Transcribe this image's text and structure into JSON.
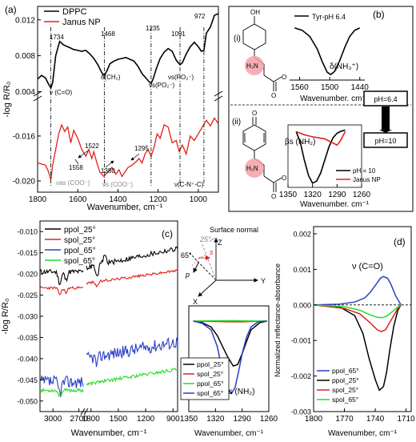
{
  "chart_data": [
    {
      "panel": "(a)",
      "type": "line",
      "xlabel": "Wavenumber, cm⁻¹",
      "ylabel": "-log R/R₀",
      "xlim": [
        1800,
        900
      ],
      "x_ticks": [
        "1800",
        "1600",
        "1400",
        "1200",
        "1000"
      ],
      "y_ticks_upper": [
        "0.012",
        "0.008",
        "0.004"
      ],
      "y_ticks_lower": [
        "-0.016",
        "-0.020"
      ],
      "legend": [
        "DPPC",
        "Janus NP"
      ],
      "peak_labels": [
        "1734",
        "1468",
        "1235",
        "1091",
        "972",
        "1522",
        "1558",
        "1380",
        "1295"
      ],
      "mode_labels": [
        "ν (C=O)",
        "δ(CH₂)",
        "νs(PO₂⁻)",
        "νs(PO₂⁻)",
        "νas (COO⁻)",
        "νs (COO⁻)",
        "ν(C-N⁺-C)"
      ],
      "series": [
        {
          "name": "DPPC",
          "color": "#000000",
          "x": [
            1800,
            1780,
            1760,
            1745,
            1734,
            1725,
            1710,
            1690,
            1670,
            1650,
            1620,
            1600,
            1580,
            1560,
            1540,
            1520,
            1500,
            1480,
            1468,
            1455,
            1440,
            1420,
            1400,
            1380,
            1360,
            1340,
            1320,
            1300,
            1280,
            1260,
            1245,
            1235,
            1225,
            1210,
            1190,
            1170,
            1150,
            1130,
            1110,
            1091,
            1080,
            1060,
            1040,
            1020,
            1000,
            985,
            972,
            960,
            940,
            920,
            900
          ],
          "y": [
            0.0054,
            0.0058,
            0.0055,
            0.0048,
            0.0044,
            0.005,
            0.008,
            0.0096,
            0.0092,
            0.009,
            0.0087,
            0.0086,
            0.0085,
            0.0086,
            0.0082,
            0.0077,
            0.007,
            0.0061,
            0.0058,
            0.0063,
            0.0071,
            0.0074,
            0.0076,
            0.0077,
            0.0078,
            0.0076,
            0.0074,
            0.0068,
            0.006,
            0.0055,
            0.0051,
            0.0049,
            0.0054,
            0.0065,
            0.0077,
            0.0084,
            0.0088,
            0.0085,
            0.0075,
            0.007,
            0.0072,
            0.0082,
            0.009,
            0.0095,
            0.009,
            0.0085,
            0.0086,
            0.0105,
            0.0112,
            0.0125,
            0.0127
          ]
        },
        {
          "name": "Janus NP",
          "color": "#e0201b",
          "x": [
            1800,
            1780,
            1760,
            1745,
            1734,
            1725,
            1710,
            1695,
            1680,
            1665,
            1650,
            1635,
            1620,
            1600,
            1580,
            1560,
            1545,
            1530,
            1520,
            1505,
            1490,
            1470,
            1450,
            1430,
            1410,
            1395,
            1380,
            1365,
            1350,
            1330,
            1310,
            1295,
            1280,
            1265,
            1250,
            1235,
            1220,
            1205,
            1190,
            1170,
            1150,
            1130,
            1110,
            1095,
            1080,
            1060,
            1040,
            1020,
            1000,
            980,
            960,
            940,
            920,
            900
          ],
          "y": [
            -0.0184,
            -0.0185,
            -0.0186,
            -0.0192,
            -0.0199,
            -0.0186,
            -0.0172,
            -0.0158,
            -0.015,
            -0.0156,
            -0.0152,
            -0.0166,
            -0.0155,
            -0.0162,
            -0.0172,
            -0.0178,
            -0.0172,
            -0.018,
            -0.0174,
            -0.0184,
            -0.0192,
            -0.0196,
            -0.0192,
            -0.0188,
            -0.0194,
            -0.019,
            -0.0196,
            -0.0192,
            -0.0188,
            -0.0186,
            -0.0183,
            -0.018,
            -0.0184,
            -0.0176,
            -0.0172,
            -0.0178,
            -0.017,
            -0.0158,
            -0.0162,
            -0.015,
            -0.0152,
            -0.0166,
            -0.0164,
            -0.0174,
            -0.0168,
            -0.0176,
            -0.016,
            -0.0164,
            -0.0158,
            -0.0152,
            -0.0146,
            -0.0151,
            -0.0144,
            -0.0149
          ]
        }
      ]
    },
    {
      "panel": "(b)",
      "type": "line",
      "sub_i": {
        "label": "(i)",
        "legend": "Tyr-pH 6.4",
        "annotation": "δ(NH₃⁺)",
        "xlabel": "Wavenumber. cm⁻¹",
        "xlim": [
          1580,
          1430
        ],
        "x_ticks": [
          "1560",
          "1500",
          "1440"
        ],
        "series": [
          {
            "name": "Tyr-pH 6.4",
            "color": "#000000",
            "x": [
              1570,
              1555,
              1540,
              1525,
              1515,
              1505,
              1498,
              1490,
              1480,
              1470,
              1460,
              1450,
              1440
            ],
            "y": [
              0.0,
              -0.05,
              -0.18,
              -0.45,
              -0.72,
              -0.95,
              -1.0,
              -0.93,
              -0.7,
              -0.42,
              -0.18,
              -0.05,
              0.0
            ]
          }
        ]
      },
      "sub_ii": {
        "label": "(ii)",
        "annotation": "βs (NH₂)",
        "xlabel": "Wavenumber. cm⁻¹",
        "xlim": [
          1350,
          1260
        ],
        "x_ticks": [
          "1350",
          "1320",
          "1290",
          "1260"
        ],
        "legend": [
          "pH = 10",
          "Janus NP"
        ],
        "series": [
          {
            "name": "pH = 10",
            "color": "#000000",
            "x": [
              1340,
              1335,
              1330,
              1325,
              1320,
              1315,
              1310,
              1305,
              1300,
              1295,
              1290,
              1285,
              1280
            ],
            "y": [
              0.0,
              -0.2,
              -0.55,
              -0.85,
              -1.0,
              -0.96,
              -0.8,
              -0.55,
              -0.3,
              -0.12,
              -0.03,
              0.01,
              0.03
            ]
          },
          {
            "name": "Janus NP",
            "color": "#e0201b",
            "x": [
              1340,
              1330,
              1320,
              1312,
              1305,
              1300,
              1295,
              1290,
              1286,
              1282,
              1280
            ],
            "y": [
              0.0,
              -0.06,
              -0.1,
              -0.12,
              -0.14,
              -0.18,
              -0.22,
              -0.26,
              -0.18,
              -0.06,
              0.0
            ]
          }
        ]
      },
      "ph_labels": [
        "pH=6.4",
        "pH=10"
      ]
    },
    {
      "panel": "(c)",
      "type": "line",
      "xlabel": "Wavenumber, cm⁻¹",
      "ylabel": "-log R/R₀",
      "x_ticks": [
        "3000",
        "2700",
        "1800",
        "1500",
        "1200",
        "900"
      ],
      "y_ticks": [
        "-0.010",
        "-0.015",
        "-0.020",
        "-0.025",
        "-0.030",
        "-0.035",
        "-0.040",
        "-0.045",
        "-0.050"
      ],
      "ylim": [
        -0.0525,
        -0.0075
      ],
      "legend": [
        "ppol_25°",
        "spol_25°",
        "ppol_65°",
        "spol_65°"
      ],
      "series": [
        {
          "name": "ppol_25°",
          "color": "#000000"
        },
        {
          "name": "spol_25°",
          "color": "#e0201b"
        },
        {
          "name": "ppol_65°",
          "color": "#2b3fc9"
        },
        {
          "name": "spol_65°",
          "color": "#22dd22"
        }
      ]
    },
    {
      "panel": "geometry",
      "type": "line",
      "labels": {
        "normal": "Surface normal",
        "z": "Z",
        "y": "Y",
        "x": "X",
        "angle25": "25°",
        "angle65": "65°",
        "s": "s",
        "p": "p"
      },
      "xlabel": "Wavenumber, cm⁻¹",
      "x_ticks": [
        "1350",
        "1320",
        "1290",
        "1260"
      ],
      "xlim": [
        1350,
        1260
      ],
      "annotation": "βs (NH₂)",
      "legend": [
        "ppol_25°",
        "spol_25°",
        "ppol_65°",
        "spol_65°"
      ],
      "series": [
        {
          "name": "ppol_25°",
          "color": "#000000",
          "x": [
            1345,
            1335,
            1325,
            1318,
            1312,
            1306,
            1300,
            1295,
            1290,
            1285,
            1280,
            1270,
            1262
          ],
          "y": [
            0,
            -0.02,
            -0.08,
            -0.2,
            -0.35,
            -0.5,
            -0.62,
            -0.6,
            -0.45,
            -0.28,
            -0.12,
            -0.02,
            0
          ]
        },
        {
          "name": "spol_25°",
          "color": "#e0201b",
          "x": [
            1345,
            1320,
            1300,
            1290,
            1280,
            1262
          ],
          "y": [
            0,
            -0.005,
            -0.01,
            -0.01,
            -0.005,
            0
          ]
        },
        {
          "name": "spol_65°",
          "color": "#22dd22",
          "x": [
            1345,
            1320,
            1300,
            1290,
            1280,
            1262
          ],
          "y": [
            0,
            0.005,
            0.006,
            0.004,
            0.002,
            0
          ]
        },
        {
          "name": "ppol_65°",
          "color": "#2b3fc9",
          "x": [
            1345,
            1335,
            1325,
            1318,
            1312,
            1306,
            1302,
            1298,
            1294,
            1290,
            1285,
            1280,
            1272,
            1262
          ],
          "y": [
            0,
            -0.03,
            -0.12,
            -0.35,
            -0.7,
            -0.95,
            -1.0,
            -0.92,
            -0.7,
            -0.45,
            -0.22,
            -0.08,
            -0.01,
            0
          ]
        }
      ]
    },
    {
      "panel": "(d)",
      "type": "line",
      "xlabel": "Wavenumber, cm⁻¹",
      "ylabel": "Normalized reflectance-absorbance",
      "annotation": "ν (C=O)",
      "xlim": [
        1800,
        1705
      ],
      "ylim": [
        -0.003,
        0.002
      ],
      "x_ticks": [
        "1800",
        "1770",
        "1740",
        "1710"
      ],
      "y_ticks": [
        "0.002",
        "0.001",
        "0.000",
        "-0.001",
        "-0.002",
        "-0.003"
      ],
      "legend": [
        "ppol_65°",
        "ppol_25°",
        "spol_25°",
        "spol_65°"
      ],
      "series": [
        {
          "name": "ppol_65°",
          "color": "#2b3fc9",
          "x": [
            1800,
            1775,
            1760,
            1750,
            1745,
            1740,
            1735,
            1732,
            1728,
            1725,
            1720,
            1715
          ],
          "y": [
            0,
            2e-05,
            8e-05,
            0.0002,
            0.00035,
            0.00055,
            0.00075,
            0.0008,
            0.00075,
            0.0006,
            0.00025,
            0
          ]
        },
        {
          "name": "ppol_25°",
          "color": "#000000",
          "x": [
            1800,
            1775,
            1760,
            1752,
            1746,
            1740,
            1736,
            1732,
            1729,
            1726,
            1722,
            1718,
            1715
          ],
          "y": [
            0,
            -5e-05,
            -0.0003,
            -0.0008,
            -0.0015,
            -0.0021,
            -0.0024,
            -0.0023,
            -0.0019,
            -0.0013,
            -0.0006,
            -0.00015,
            0
          ]
        },
        {
          "name": "spol_25°",
          "color": "#e0201b",
          "x": [
            1800,
            1770,
            1755,
            1745,
            1738,
            1734,
            1730,
            1726,
            1722,
            1718,
            1715
          ],
          "y": [
            0,
            -0.0001,
            -0.00025,
            -0.0005,
            -0.0007,
            -0.00075,
            -0.0007,
            -0.0005,
            -0.0003,
            -0.0001,
            0
          ]
        },
        {
          "name": "spol_65°",
          "color": "#22dd22",
          "x": [
            1800,
            1770,
            1755,
            1745,
            1738,
            1733,
            1728,
            1723,
            1718,
            1715
          ],
          "y": [
            0,
            -5e-05,
            -0.00015,
            -0.00028,
            -0.00035,
            -0.00036,
            -0.0003,
            -0.00018,
            -6e-05,
            0
          ]
        }
      ]
    }
  ]
}
